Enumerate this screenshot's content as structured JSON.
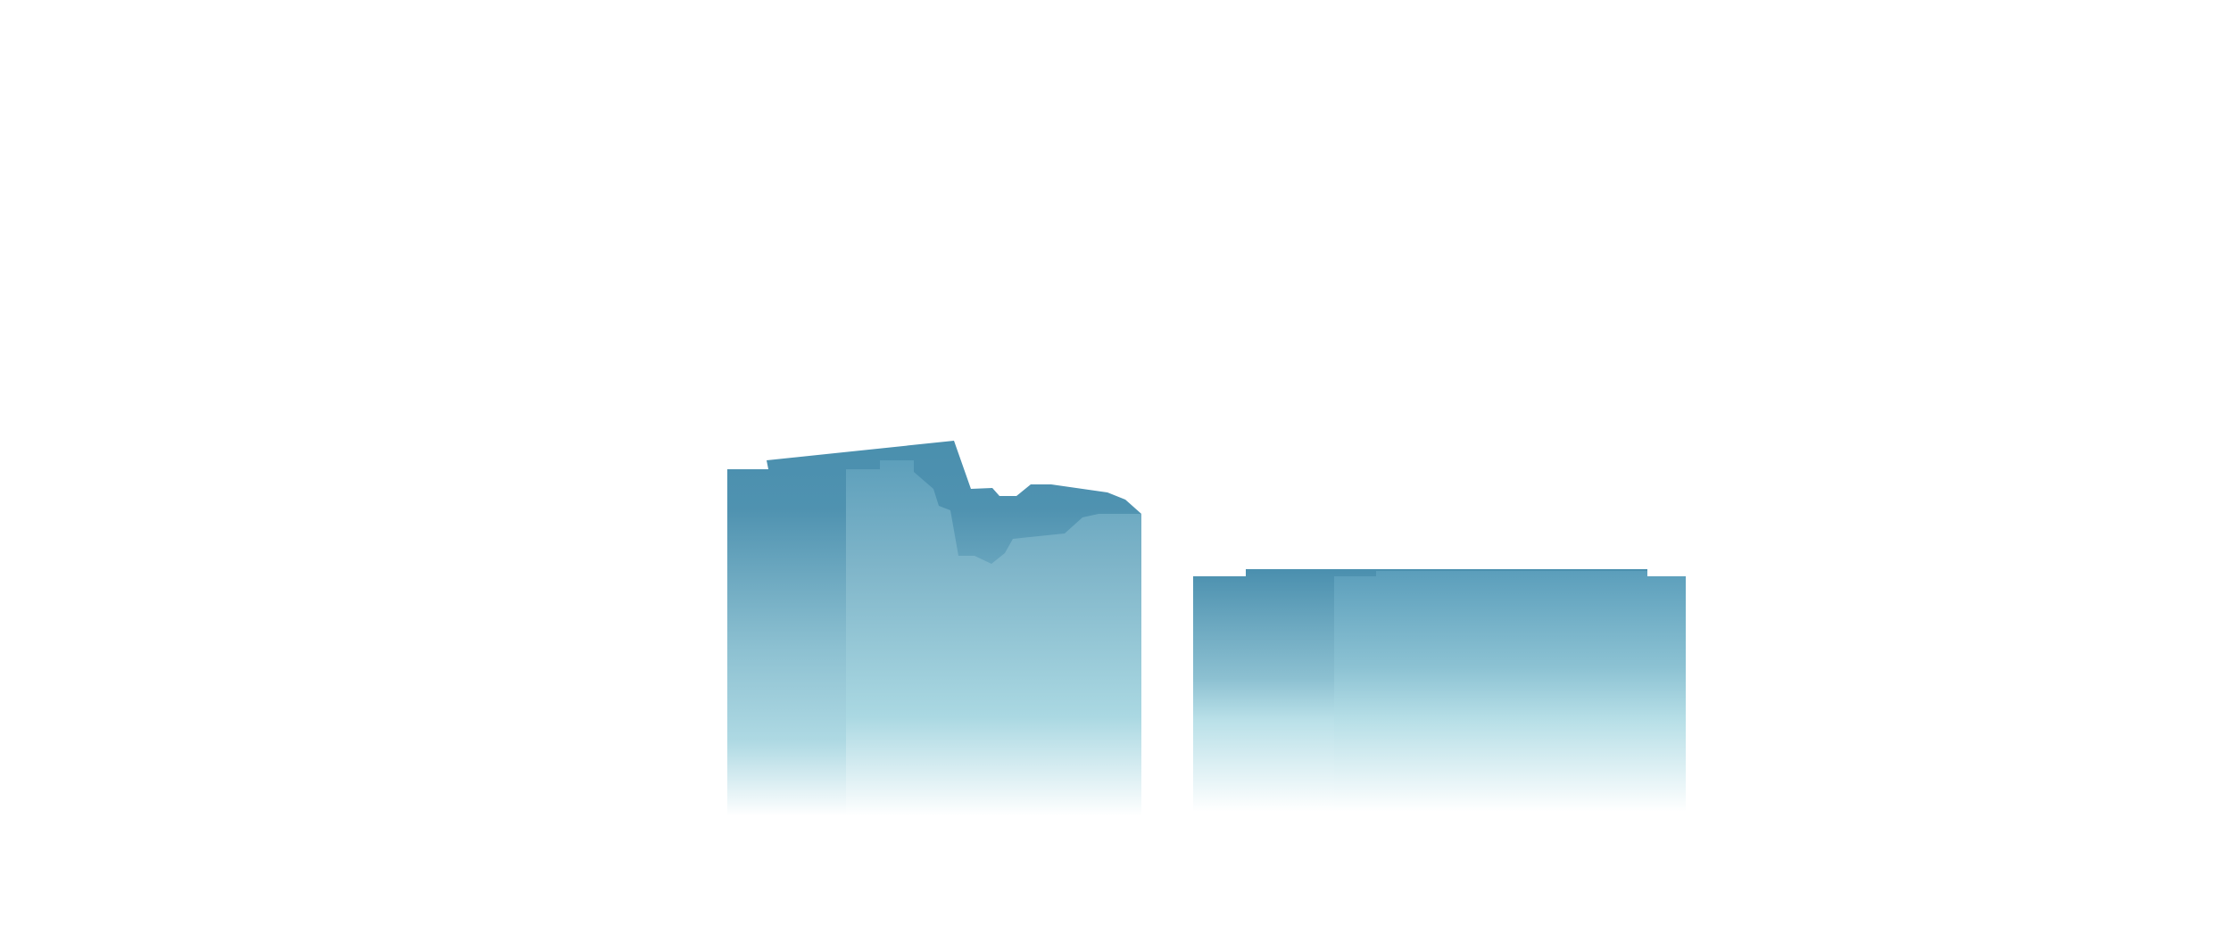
{
  "scene": {
    "background": "#ffffff",
    "palette": {
      "deep": "#4a8fae",
      "mid": "#8cc0d1",
      "light": "#aad8e2",
      "fade": "#ffffff"
    }
  },
  "blocks": [
    {
      "id": "left-block",
      "layers": [
        "back-layer",
        "front-layer"
      ]
    },
    {
      "id": "right-block",
      "layers": [
        "back-layer",
        "front-layer"
      ]
    }
  ]
}
